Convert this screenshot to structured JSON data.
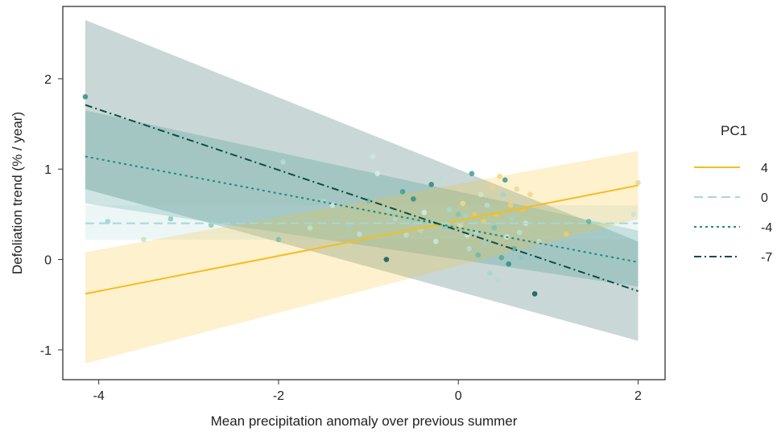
{
  "chart_data": {
    "type": "line",
    "title": "",
    "xlabel": "Mean precipitation anomaly over previous summer",
    "ylabel": "Defoliation trend (% / year)",
    "xlim": [
      -4.4,
      2.3
    ],
    "ylim": [
      -1.33,
      2.8
    ],
    "x_ticks": [
      -4,
      -2,
      0,
      2
    ],
    "y_ticks": [
      -1,
      0,
      1,
      2
    ],
    "x_tick_labels": [
      "-4",
      "-2",
      "0",
      "2"
    ],
    "y_tick_labels": [
      "-1",
      "0",
      "1",
      "2"
    ],
    "grid": false,
    "legend": {
      "title": "PC1",
      "position": "right"
    },
    "x_range": [
      -4.15,
      2.0
    ],
    "series": [
      {
        "name": "4",
        "color": "#F5BE1E",
        "dash": "solid",
        "y_start": -0.38,
        "y_end": 0.82,
        "ci_start": [
          -1.15,
          0.08
        ],
        "ci_end": [
          0.45,
          1.2
        ]
      },
      {
        "name": "0",
        "color": "#A7D8D6",
        "dash": "long",
        "y_start": 0.4,
        "y_end": 0.4,
        "ci_start": [
          0.22,
          0.6
        ],
        "ci_end": [
          0.22,
          0.6
        ]
      },
      {
        "name": "-4",
        "color": "#1E8A80",
        "dash": "dot",
        "y_start": 1.14,
        "y_end": -0.03,
        "ci_start": [
          0.62,
          1.65
        ],
        "ci_end": [
          -0.3,
          0.32
        ]
      },
      {
        "name": "-7",
        "color": "#0B4D45",
        "dash": "dashdot",
        "y_start": 1.71,
        "y_end": -0.35,
        "ci_start": [
          0.78,
          2.65
        ],
        "ci_end": [
          -0.9,
          0.2
        ]
      }
    ],
    "points": [
      {
        "x": -4.15,
        "y": 1.8,
        "c": "#2E8F86"
      },
      {
        "x": -3.9,
        "y": 0.42,
        "c": "#9ED3CF"
      },
      {
        "x": -3.5,
        "y": 0.22,
        "c": "#C7E1C5"
      },
      {
        "x": -3.2,
        "y": 0.45,
        "c": "#8BC9C2"
      },
      {
        "x": -2.75,
        "y": 0.38,
        "c": "#8CC7A8"
      },
      {
        "x": -2.0,
        "y": 0.22,
        "c": "#74C4A5"
      },
      {
        "x": -1.95,
        "y": 1.08,
        "c": "#B8DCD8"
      },
      {
        "x": -1.65,
        "y": 0.35,
        "c": "#C4E3C8"
      },
      {
        "x": -1.5,
        "y": 0.65,
        "c": "#A7D7CF"
      },
      {
        "x": -1.4,
        "y": 0.6,
        "c": "#CEE9E2"
      },
      {
        "x": -1.22,
        "y": 0.38,
        "c": "#9FD0C9"
      },
      {
        "x": -1.1,
        "y": 0.28,
        "c": "#BFE2D8"
      },
      {
        "x": -1.0,
        "y": 0.65,
        "c": "#73BEB0"
      },
      {
        "x": -0.95,
        "y": 1.14,
        "c": "#CCE8E6"
      },
      {
        "x": -0.9,
        "y": 0.95,
        "c": "#D9EEE9"
      },
      {
        "x": -0.8,
        "y": 0.0,
        "c": "#0F5A52"
      },
      {
        "x": -0.78,
        "y": 0.55,
        "c": "#A2D6CC"
      },
      {
        "x": -0.7,
        "y": 0.45,
        "c": "#B1DBC8"
      },
      {
        "x": -0.62,
        "y": 0.75,
        "c": "#3E9F92"
      },
      {
        "x": -0.58,
        "y": 0.27,
        "c": "#BEDFC7"
      },
      {
        "x": -0.55,
        "y": 0.42,
        "c": "#9AD0C4"
      },
      {
        "x": -0.5,
        "y": 0.67,
        "c": "#2D8E82"
      },
      {
        "x": -0.42,
        "y": 0.32,
        "c": "#B0DAC8"
      },
      {
        "x": -0.38,
        "y": 0.52,
        "c": "#D6EAE3"
      },
      {
        "x": -0.3,
        "y": 0.83,
        "c": "#2A8A7F"
      },
      {
        "x": -0.25,
        "y": 0.2,
        "c": "#CFE9D6"
      },
      {
        "x": -0.2,
        "y": 0.9,
        "c": "#B6DDD6"
      },
      {
        "x": -0.15,
        "y": 0.36,
        "c": "#8ECBC0"
      },
      {
        "x": -0.1,
        "y": 0.55,
        "c": "#A9D7CE"
      },
      {
        "x": 0.0,
        "y": 0.5,
        "c": "#7BC4B8"
      },
      {
        "x": 0.02,
        "y": 0.38,
        "c": "#E8D891"
      },
      {
        "x": 0.05,
        "y": 0.62,
        "c": "#F1D98B"
      },
      {
        "x": 0.08,
        "y": 0.48,
        "c": "#A4D2C5"
      },
      {
        "x": 0.1,
        "y": 0.27,
        "c": "#CFE7D8"
      },
      {
        "x": 0.12,
        "y": 0.12,
        "c": "#B5DCD6"
      },
      {
        "x": 0.15,
        "y": 0.95,
        "c": "#3F9E92"
      },
      {
        "x": 0.18,
        "y": 0.5,
        "c": "#E5C86A"
      },
      {
        "x": 0.2,
        "y": 0.3,
        "c": "#ADD8D2"
      },
      {
        "x": 0.22,
        "y": 0.05,
        "c": "#6CB9AB"
      },
      {
        "x": 0.25,
        "y": 0.72,
        "c": "#D3E8C7"
      },
      {
        "x": 0.28,
        "y": 0.42,
        "c": "#F3CD5E"
      },
      {
        "x": 0.3,
        "y": 0.18,
        "c": "#9FCFC7"
      },
      {
        "x": 0.32,
        "y": 0.6,
        "c": "#B9DCD4"
      },
      {
        "x": 0.35,
        "y": -0.15,
        "c": "#A8D4CB"
      },
      {
        "x": 0.38,
        "y": 0.8,
        "c": "#ECD489"
      },
      {
        "x": 0.4,
        "y": 0.35,
        "c": "#7BBFB2"
      },
      {
        "x": 0.42,
        "y": 0.5,
        "c": "#F1C850"
      },
      {
        "x": 0.44,
        "y": -0.22,
        "c": "#B7DBD2"
      },
      {
        "x": 0.46,
        "y": 0.92,
        "c": "#F4D67A"
      },
      {
        "x": 0.48,
        "y": 0.02,
        "c": "#4FA99B"
      },
      {
        "x": 0.5,
        "y": 0.72,
        "c": "#A5D4CA"
      },
      {
        "x": 0.52,
        "y": 0.88,
        "c": "#3B9A8D"
      },
      {
        "x": 0.54,
        "y": 0.25,
        "c": "#D5EADA"
      },
      {
        "x": 0.56,
        "y": -0.05,
        "c": "#2E8C80"
      },
      {
        "x": 0.58,
        "y": 0.6,
        "c": "#F2CF6B"
      },
      {
        "x": 0.6,
        "y": 0.45,
        "c": "#A1D2C6"
      },
      {
        "x": 0.62,
        "y": 0.12,
        "c": "#5BB0A2"
      },
      {
        "x": 0.65,
        "y": 0.78,
        "c": "#E3D8A6"
      },
      {
        "x": 0.68,
        "y": 0.3,
        "c": "#BFE0D5"
      },
      {
        "x": 0.7,
        "y": 0.02,
        "c": "#8CC9BD"
      },
      {
        "x": 0.72,
        "y": 0.55,
        "c": "#F0C348"
      },
      {
        "x": 0.75,
        "y": 0.4,
        "c": "#D1E8DD"
      },
      {
        "x": 0.8,
        "y": 0.72,
        "c": "#F2D58A"
      },
      {
        "x": 0.85,
        "y": -0.38,
        "c": "#0F5A52"
      },
      {
        "x": 0.9,
        "y": 0.2,
        "c": "#B8DCD4"
      },
      {
        "x": 1.2,
        "y": 0.28,
        "c": "#F3CC60"
      },
      {
        "x": 1.45,
        "y": 0.42,
        "c": "#5DB4A6"
      },
      {
        "x": 1.95,
        "y": 0.5,
        "c": "#C7E3DA"
      },
      {
        "x": 2.0,
        "y": 0.85,
        "c": "#EFD592"
      }
    ]
  }
}
